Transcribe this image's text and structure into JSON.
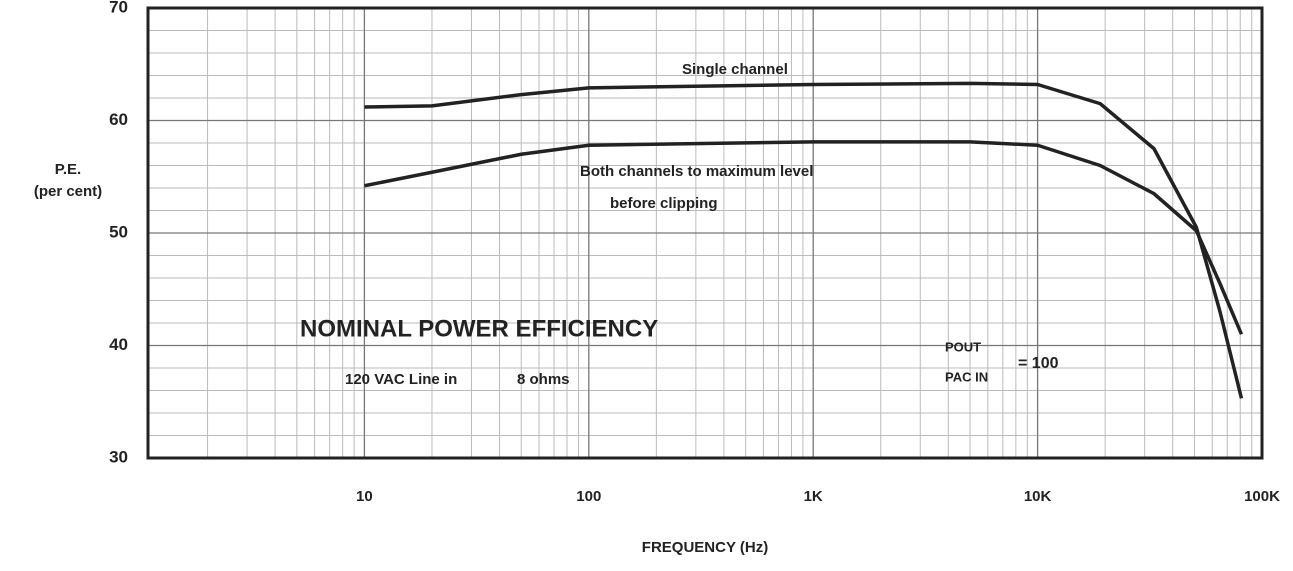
{
  "chart_data": {
    "type": "line",
    "ylabel": [
      "P.E.",
      "(per cent)"
    ],
    "xlabel": "FREQUENCY (Hz)",
    "log_x": true,
    "grid": true,
    "xlim": [
      1,
      100000
    ],
    "xticks": [
      10,
      100,
      {
        "value": 1000,
        "label": "1K"
      },
      {
        "value": 10000,
        "label": "10K"
      },
      {
        "value": 100000,
        "label": "100K"
      }
    ],
    "ylim": [
      30,
      70
    ],
    "yticks": [
      30,
      40,
      50,
      60,
      70
    ],
    "x": [
      10,
      20,
      50,
      100,
      1000,
      5000,
      10000,
      19000,
      33000,
      51000,
      65000,
      81000
    ],
    "series": [
      {
        "name": "Single channel",
        "color": "#222222",
        "values": [
          61.2,
          61.3,
          62.3,
          62.9,
          63.2,
          63.3,
          63.2,
          61.5,
          57.5,
          50.5,
          43,
          35.3
        ]
      },
      {
        "name": "Both channels to maximum level before clipping",
        "color": "#222222",
        "values": [
          54.2,
          55.4,
          57,
          57.8,
          58.1,
          58.1,
          57.8,
          56,
          53.5,
          50.2,
          45.5,
          41
        ]
      }
    ],
    "annotations": [
      "Single channel",
      "Both channels to maximum level",
      "before clipping",
      "NOMINAL POWER EFFICIENCY",
      "120 VAC  Line in",
      "8 ohms",
      "POUT",
      "PAC IN",
      "= 100"
    ]
  }
}
